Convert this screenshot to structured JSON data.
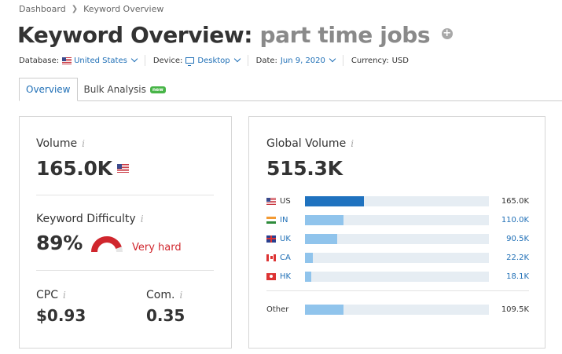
{
  "breadcrumb": {
    "home": "Dashboard",
    "current": "Keyword Overview"
  },
  "header": {
    "title_prefix": "Keyword Overview:",
    "keyword": "part time jobs",
    "add_icon": "plus-circle-icon"
  },
  "meta": {
    "database_label": "Database:",
    "database_value": "United States",
    "device_label": "Device:",
    "device_value": "Desktop",
    "date_label": "Date:",
    "date_value": "Jun 9, 2020",
    "currency_label": "Currency:",
    "currency_value": "USD"
  },
  "tabs": [
    {
      "label": "Overview",
      "active": true
    },
    {
      "label": "Bulk Analysis",
      "badge": "new",
      "active": false
    }
  ],
  "volume": {
    "label": "Volume",
    "value": "165.0K",
    "flag": "flag-us-icon"
  },
  "difficulty": {
    "label": "Keyword Difficulty",
    "value": "89%",
    "level": "Very hard",
    "gauge_fraction": 0.89,
    "color": "#d0262d"
  },
  "cpc": {
    "label": "CPC",
    "value": "$0.93"
  },
  "competition": {
    "label": "Com.",
    "value": "0.35"
  },
  "global_volume": {
    "label": "Global Volume",
    "value": "515.3K",
    "countries": [
      {
        "code": "US",
        "volume": "165.0K",
        "fraction": 0.32,
        "color": "#1f72bf",
        "link": false
      },
      {
        "code": "IN",
        "volume": "110.0K",
        "fraction": 0.21,
        "color": "#90c4ec",
        "link": true
      },
      {
        "code": "UK",
        "volume": "90.5K",
        "fraction": 0.176,
        "color": "#90c4ec",
        "link": true
      },
      {
        "code": "CA",
        "volume": "22.2K",
        "fraction": 0.043,
        "color": "#90c4ec",
        "link": true
      },
      {
        "code": "HK",
        "volume": "18.1K",
        "fraction": 0.035,
        "color": "#90c4ec",
        "link": true
      }
    ],
    "other": {
      "label": "Other",
      "volume": "109.5K",
      "fraction": 0.21,
      "color": "#90c4ec"
    }
  }
}
